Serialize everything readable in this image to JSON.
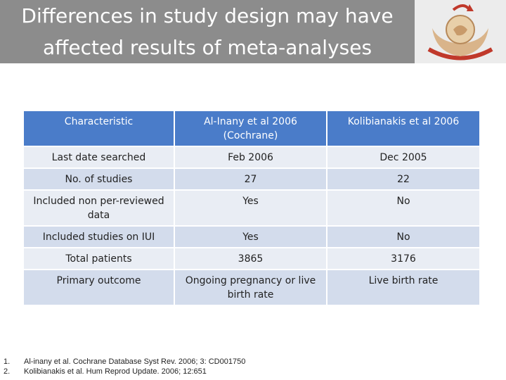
{
  "slide": {
    "title_line1": "Differences in study design may have",
    "title_line2": "affected results of meta-analyses"
  },
  "table": {
    "headers": [
      "Characteristic",
      "Al-Inany et al 2006 (Cochrane)",
      "Kolibianakis et al 2006"
    ],
    "rows": [
      [
        "Last date searched",
        "Feb 2006",
        "Dec 2005"
      ],
      [
        "No. of studies",
        "27",
        "22"
      ],
      [
        "Included non per-reviewed data",
        "Yes",
        "No"
      ],
      [
        "Included studies on IUI",
        "Yes",
        "No"
      ],
      [
        "Total patients",
        "3865",
        "3176"
      ],
      [
        "Primary outcome",
        "Ongoing pregnancy or live birth rate",
        "Live birth rate"
      ]
    ]
  },
  "references": [
    {
      "num": "1.",
      "text": "Al-inany et al. Cochrane Database Syst Rev. 2006; 3: CD001750"
    },
    {
      "num": "2.",
      "text": "Kolibianakis et al. Hum Reprod Update. 2006; 12:651"
    }
  ],
  "colors": {
    "title_bg": "#8c8c8c",
    "header_bg": "#4a7cc9",
    "row_light": "#e9edf4",
    "row_dark": "#d3dcec",
    "logo_red": "#c0392b",
    "logo_tan": "#d9b48a"
  },
  "icons": {
    "logo": "clinic-logo-icon"
  }
}
